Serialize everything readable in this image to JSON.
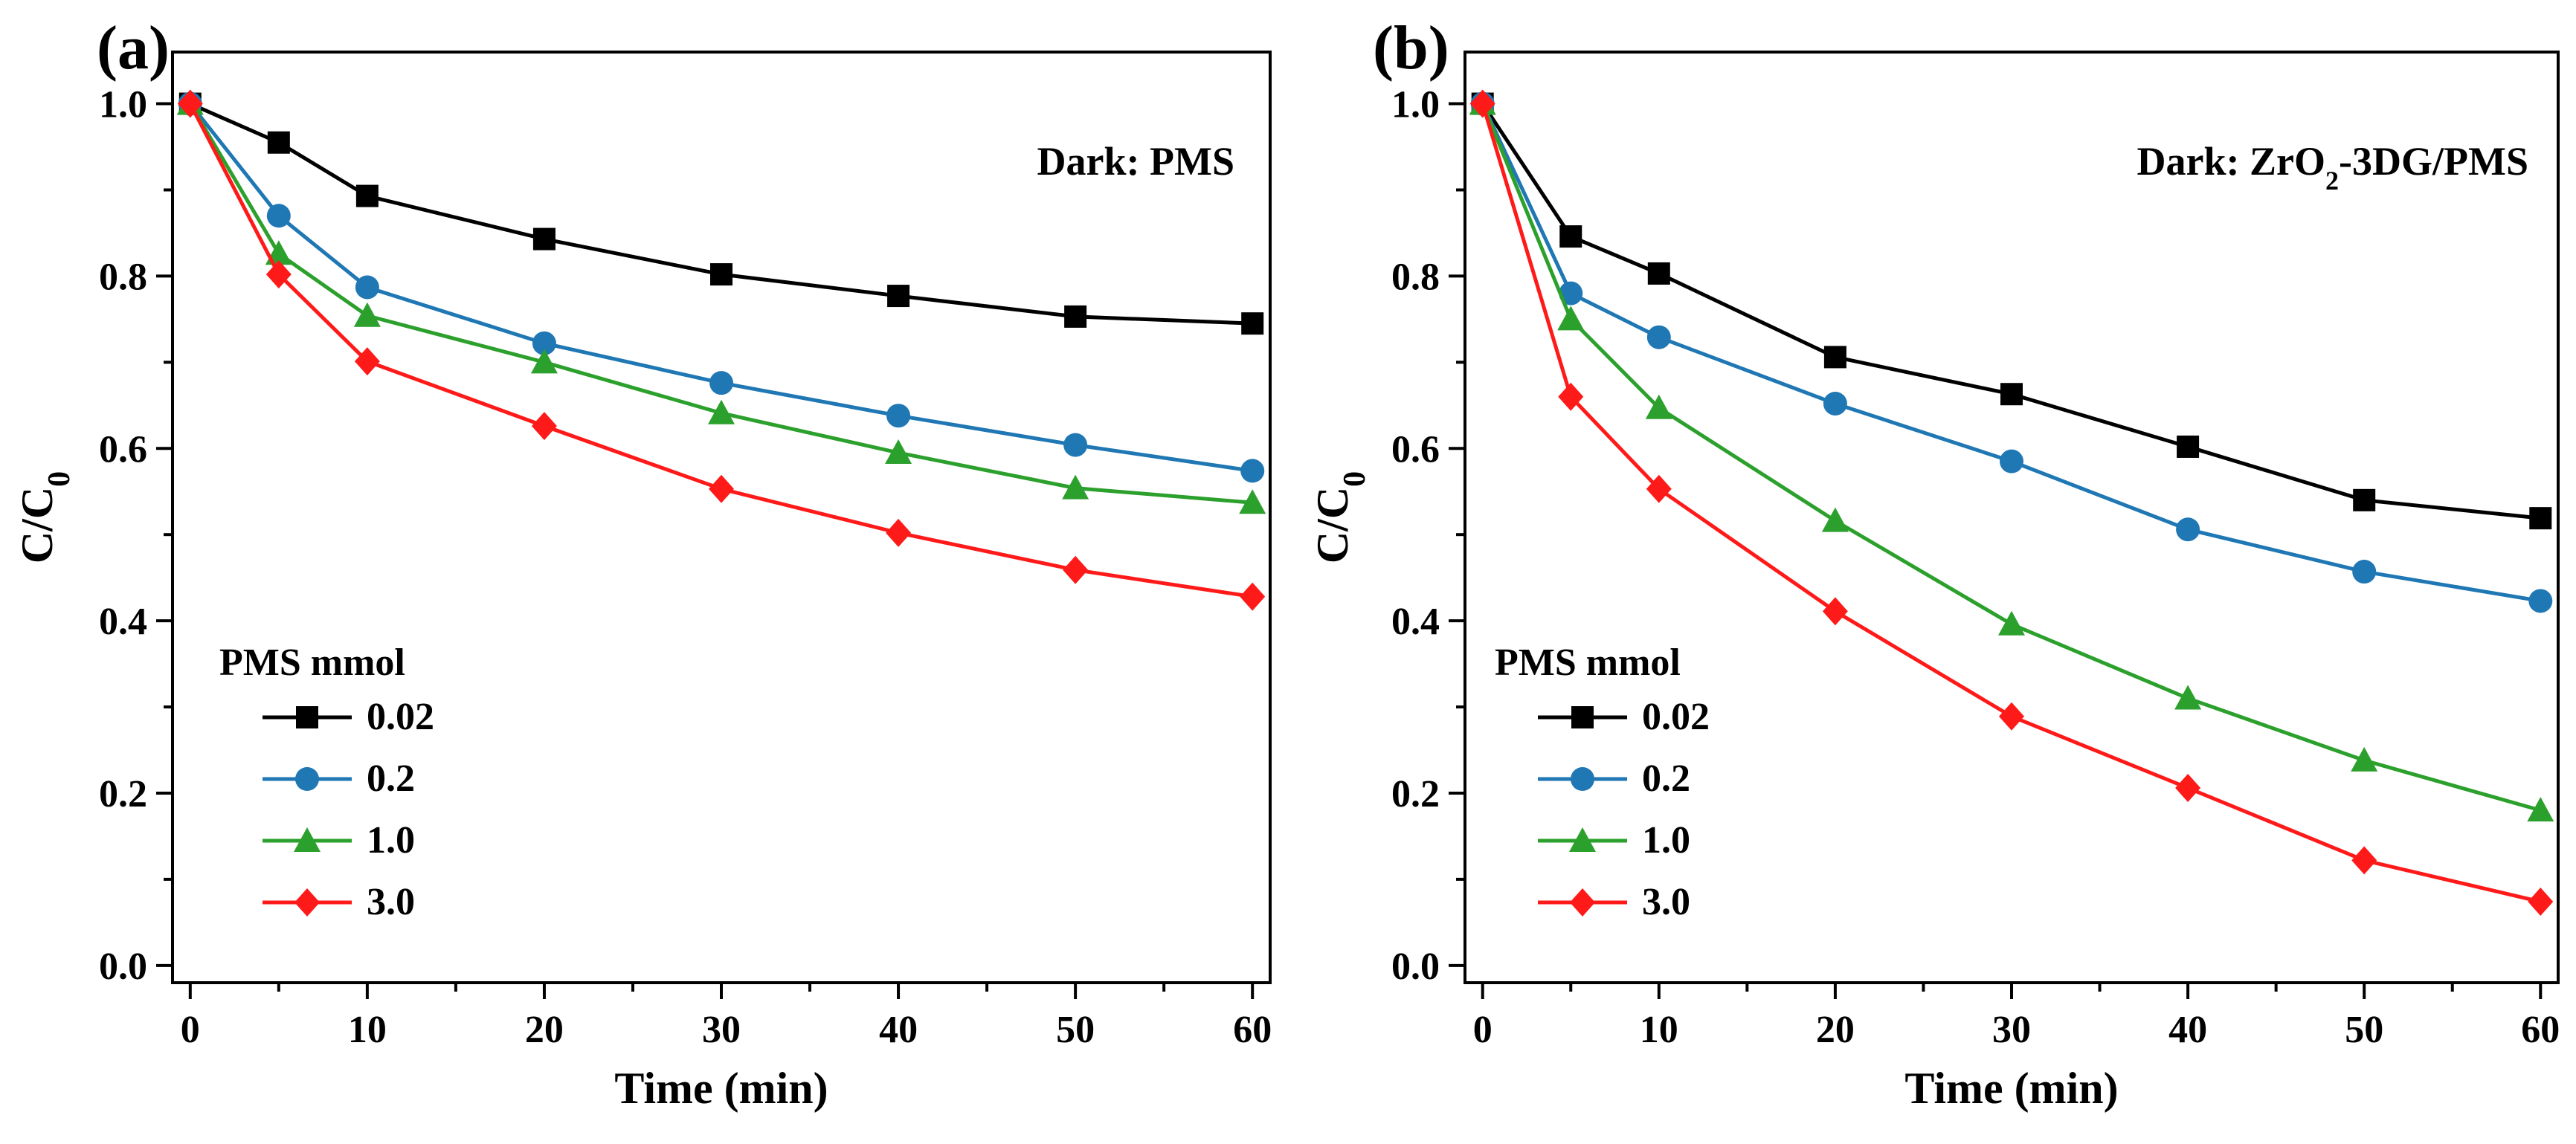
{
  "chart_data": [
    {
      "panel": "(a)",
      "type": "line",
      "annotation": "Dark:  PMS",
      "xlabel": "Time (min)",
      "ylabel": "C/C0",
      "xlim": [
        -1,
        61
      ],
      "ylim": [
        -0.02,
        1.06
      ],
      "xticks": [
        0,
        10,
        20,
        30,
        40,
        50,
        60
      ],
      "yticks": [
        0.0,
        0.2,
        0.4,
        0.6,
        0.8,
        1.0
      ],
      "grid": false,
      "legend_title": "PMS mmol",
      "legend_position": "bottom-left",
      "x": [
        0,
        5,
        10,
        20,
        30,
        40,
        50,
        60
      ],
      "series": [
        {
          "name": "0.02",
          "color": "#000000",
          "marker": "square",
          "values": [
            1.0,
            0.955,
            0.893,
            0.843,
            0.802,
            0.777,
            0.753,
            0.745
          ]
        },
        {
          "name": "0.2",
          "color": "#1f77b4",
          "marker": "circle",
          "values": [
            1.0,
            0.87,
            0.787,
            0.722,
            0.676,
            0.638,
            0.604,
            0.574
          ]
        },
        {
          "name": "1.0",
          "color": "#2ca02c",
          "marker": "triangle",
          "values": [
            1.0,
            0.826,
            0.754,
            0.7,
            0.641,
            0.595,
            0.554,
            0.537
          ]
        },
        {
          "name": "3.0",
          "color": "#ff1a1a",
          "marker": "diamond",
          "values": [
            1.0,
            0.802,
            0.701,
            0.626,
            0.553,
            0.502,
            0.459,
            0.428
          ]
        }
      ]
    },
    {
      "panel": "(b)",
      "type": "line",
      "annotation": "Dark: ZrO2-3DG/PMS",
      "xlabel": "Time (min)",
      "ylabel": "C/C0",
      "xlim": [
        -1,
        61
      ],
      "ylim": [
        -0.02,
        1.06
      ],
      "xticks": [
        0,
        10,
        20,
        30,
        40,
        50,
        60
      ],
      "yticks": [
        0.0,
        0.2,
        0.4,
        0.6,
        0.8,
        1.0
      ],
      "grid": false,
      "legend_title": "PMS mmol",
      "legend_position": "bottom-left",
      "x": [
        0,
        5,
        10,
        20,
        30,
        40,
        50,
        60
      ],
      "series": [
        {
          "name": "0.02",
          "color": "#000000",
          "marker": "square",
          "values": [
            1.0,
            0.846,
            0.803,
            0.706,
            0.663,
            0.602,
            0.54,
            0.519
          ]
        },
        {
          "name": "0.2",
          "color": "#1f77b4",
          "marker": "circle",
          "values": [
            1.0,
            0.78,
            0.729,
            0.652,
            0.585,
            0.506,
            0.457,
            0.423
          ]
        },
        {
          "name": "1.0",
          "color": "#2ca02c",
          "marker": "triangle",
          "values": [
            1.0,
            0.75,
            0.647,
            0.516,
            0.396,
            0.31,
            0.238,
            0.18
          ]
        },
        {
          "name": "3.0",
          "color": "#ff1a1a",
          "marker": "diamond",
          "values": [
            1.0,
            0.66,
            0.553,
            0.411,
            0.289,
            0.206,
            0.122,
            0.074
          ]
        }
      ]
    }
  ]
}
